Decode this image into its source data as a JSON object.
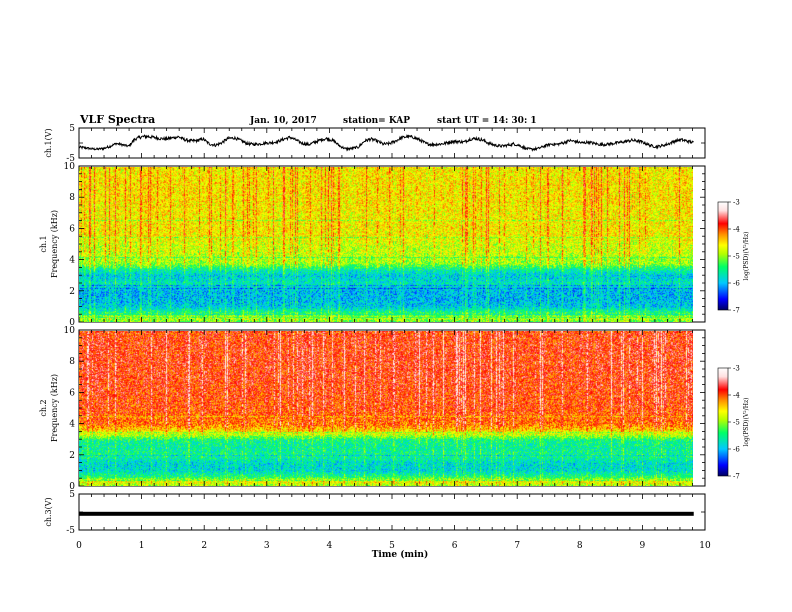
{
  "chart_data": {
    "type": "heatmap",
    "title": "VLF Spectra",
    "header": {
      "date": "Jan. 10, 2017",
      "station": "station= KAP",
      "start": "start UT =   14: 30: 1"
    },
    "x": {
      "label": "Time (min)",
      "lim": [
        0,
        10
      ],
      "ticks": [
        "0",
        "1",
        "2",
        "3",
        "4",
        "5",
        "6",
        "7",
        "8",
        "9",
        "10"
      ],
      "data_end": 9.82
    },
    "panels": [
      {
        "kind": "line",
        "ylabel": "ch.1(V)",
        "ylim": [
          -5,
          5
        ],
        "yticks": [
          "5",
          "-5"
        ],
        "series_min": [
          -1.8,
          -2.0,
          -2.3,
          -2.4,
          -2.2,
          -1.5,
          -0.5,
          -1.0,
          -1.5,
          0.8,
          1.5,
          1.6,
          1.4,
          1.0,
          0.9,
          1.2,
          1.6,
          0.6,
          0.2,
          0.3,
          0.9,
          -0.8,
          -1.2,
          -0.4,
          1.0,
          1.2,
          0.5,
          -0.6,
          -0.9,
          -0.8,
          -0.5,
          -0.4,
          0.0,
          0.8,
          1.4,
          0.5,
          -0.6,
          -1.0,
          -0.2,
          0.6,
          1.0,
          0.2,
          -1.4,
          -2.4,
          -2.2,
          -1.8,
          0.2,
          0.8,
          0.2,
          -0.9,
          -0.7,
          0.2,
          1.3,
          1.7,
          1.3,
          0.4,
          -0.8,
          -1.0,
          -0.9,
          -0.6,
          0.0,
          0.0,
          -0.2,
          0.8,
          1.0,
          0.5,
          -0.6,
          -1.2,
          -1.5,
          -1.2,
          -0.8,
          -1.3,
          -2.3,
          -2.5,
          -2.2,
          -1.4,
          -0.8,
          -0.9,
          -0.4,
          0.3,
          0.0,
          -0.5,
          -0.2,
          -0.6,
          -1.0,
          -0.9,
          -0.6,
          -0.3,
          0.0,
          0.4,
          0.2,
          -0.4,
          -1.3,
          -1.7,
          -1.3,
          -0.7,
          0.2,
          0.6,
          0.1,
          -0.3
        ],
        "series_max": [
          -1.0,
          -1.2,
          -1.6,
          -1.7,
          -1.4,
          -0.7,
          0.2,
          -0.2,
          -0.7,
          1.8,
          2.6,
          2.8,
          2.4,
          2.0,
          1.8,
          2.2,
          2.6,
          1.6,
          1.2,
          1.3,
          1.8,
          0.2,
          -0.3,
          0.6,
          2.0,
          2.2,
          1.4,
          0.3,
          0.0,
          0.1,
          0.4,
          0.6,
          1.0,
          1.8,
          2.4,
          1.4,
          0.3,
          -0.1,
          0.8,
          1.6,
          2.0,
          1.2,
          -0.6,
          -1.6,
          -1.4,
          -0.9,
          1.2,
          1.8,
          1.2,
          0.1,
          0.3,
          1.2,
          2.3,
          2.7,
          2.3,
          1.4,
          0.2,
          0.0,
          0.1,
          0.4,
          1.0,
          1.0,
          0.8,
          1.8,
          2.0,
          1.5,
          0.4,
          -0.3,
          -0.6,
          -0.3,
          0.2,
          -0.4,
          -1.5,
          -1.7,
          -1.4,
          -0.6,
          0.1,
          0.0,
          0.5,
          1.3,
          1.0,
          0.5,
          0.8,
          0.3,
          -0.1,
          0.0,
          0.3,
          0.6,
          1.0,
          1.4,
          1.2,
          0.6,
          -0.4,
          -0.8,
          -0.4,
          0.2,
          1.2,
          1.6,
          1.1,
          0.6
        ]
      },
      {
        "kind": "spectrogram",
        "ylabel": "ch.1",
        "ylabel2": "Frequency (kHz)",
        "ylim": [
          0,
          10
        ],
        "yticks": [
          "0",
          "2",
          "4",
          "6",
          "8",
          "10"
        ],
        "zlabel": "log(PSD)(V²/Hz)",
        "zlim": [
          -7,
          -3
        ],
        "zticks": [
          "-3",
          "-4",
          "-5",
          "-6",
          "-7"
        ],
        "zprofile": {
          "freq_khz": [
            0,
            0.3,
            0.6,
            1.0,
            1.5,
            2.0,
            2.5,
            3.0,
            3.4,
            3.8,
            4.2,
            4.6,
            5.0,
            5.6,
            6.0,
            7.0,
            8.0,
            9.0,
            10.0
          ],
          "mean_log_psd": [
            -5.2,
            -4.9,
            -5.4,
            -5.9,
            -6.0,
            -6.0,
            -5.7,
            -5.9,
            -5.6,
            -5.0,
            -4.9,
            -4.8,
            -4.8,
            -4.6,
            -4.6,
            -4.6,
            -4.55,
            -4.55,
            -4.6
          ]
        },
        "lines_khz": [
          0.3,
          0.5,
          2.2,
          2.4,
          4.2,
          5.5,
          6.6
        ]
      },
      {
        "kind": "spectrogram",
        "ylabel": "ch.2",
        "ylabel2": "Frequency (kHz)",
        "ylim": [
          0,
          10
        ],
        "yticks": [
          "0",
          "2",
          "4",
          "6",
          "8",
          "10"
        ],
        "zlabel": "log(PSD)(V²/Hz)",
        "zlim": [
          -7,
          -3
        ],
        "zticks": [
          "-3",
          "-4",
          "-5",
          "-6",
          "-7"
        ],
        "zprofile": {
          "freq_khz": [
            0,
            0.3,
            0.6,
            1.0,
            1.5,
            2.0,
            2.5,
            3.0,
            3.3,
            3.6,
            4.0,
            5.0,
            6.0,
            7.0,
            8.0,
            9.0,
            10.0
          ],
          "mean_log_psd": [
            -5.0,
            -4.6,
            -5.4,
            -5.8,
            -5.8,
            -5.5,
            -5.6,
            -5.5,
            -4.9,
            -4.5,
            -4.1,
            -3.95,
            -3.9,
            -3.85,
            -3.85,
            -3.85,
            -3.9
          ]
        },
        "lines_khz": [
          0.4,
          2.0,
          3.5,
          4.5
        ]
      },
      {
        "kind": "line",
        "ylabel": "ch.3(V)",
        "ylim": [
          -5,
          5
        ],
        "yticks": [
          "5",
          "-5"
        ],
        "constant": -0.5
      }
    ],
    "colors": {
      "line": "#000000",
      "colormap": [
        "#000060",
        "#0000ff",
        "#00c8ff",
        "#00ff66",
        "#b4ff00",
        "#ffff00",
        "#ff9000",
        "#ff0000",
        "#ffe0e0",
        "#ffffff"
      ]
    }
  }
}
